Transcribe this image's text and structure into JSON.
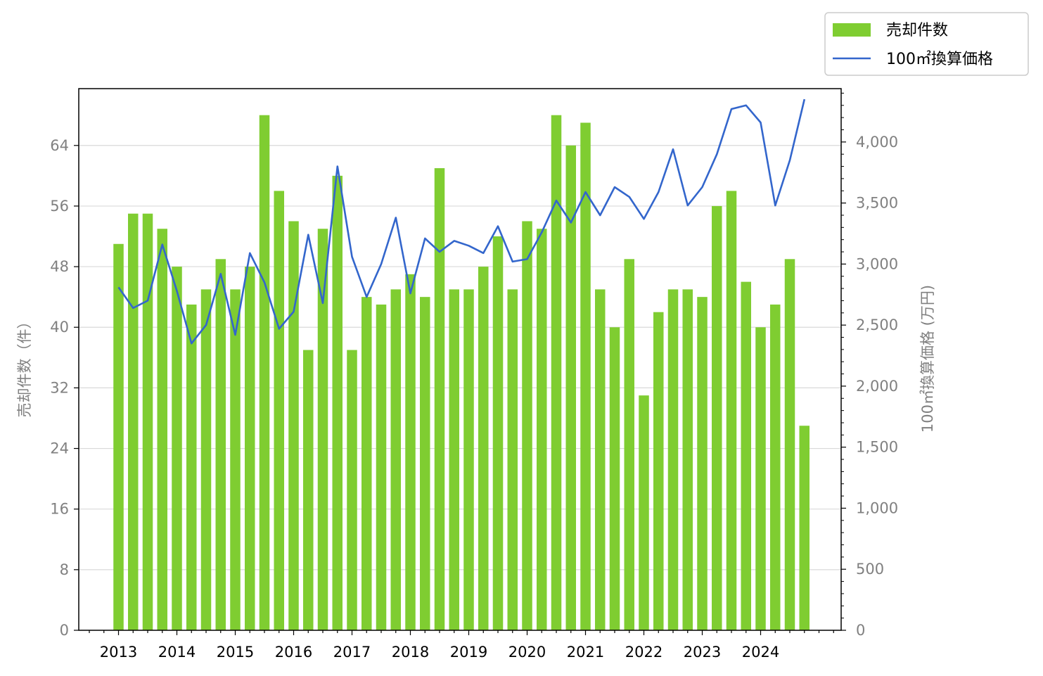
{
  "chart_data": {
    "type": "bar",
    "x_ticks": [
      "2013",
      "2014",
      "2015",
      "2016",
      "2017",
      "2018",
      "2019",
      "2020",
      "2021",
      "2022",
      "2023",
      "2024"
    ],
    "series": [
      {
        "name": "売却件数",
        "kind": "bar",
        "axis": "left",
        "color": "#7fcd31",
        "values": [
          51,
          55,
          55,
          53,
          48,
          43,
          45,
          49,
          45,
          48,
          68,
          58,
          54,
          37,
          53,
          60,
          37,
          44,
          43,
          45,
          47,
          44,
          61,
          45,
          45,
          48,
          52,
          45,
          54,
          53,
          68,
          64,
          67,
          45,
          40,
          49,
          31,
          42,
          45,
          45,
          44,
          56,
          58,
          46,
          40,
          43,
          49,
          27
        ]
      },
      {
        "name": "100㎡換算価格",
        "kind": "line",
        "axis": "right",
        "color": "#3366cc",
        "values": [
          2810,
          2640,
          2700,
          3160,
          2780,
          2350,
          2500,
          2920,
          2420,
          3090,
          2850,
          2470,
          2610,
          3240,
          2680,
          3800,
          3060,
          2730,
          3000,
          3380,
          2760,
          3210,
          3100,
          3190,
          3150,
          3090,
          3310,
          3020,
          3040,
          3260,
          3520,
          3340,
          3590,
          3400,
          3630,
          3550,
          3370,
          3590,
          3940,
          3480,
          3630,
          3900,
          4270,
          4300,
          4160,
          3480,
          3850,
          4350
        ]
      }
    ],
    "y_left": {
      "label": "売却件数（件）",
      "ticks": [
        "0",
        "8",
        "16",
        "24",
        "32",
        "40",
        "48",
        "56",
        "64"
      ],
      "range": [
        0,
        71.5
      ]
    },
    "y_right": {
      "label": "100㎡換算価格 (万円)",
      "ticks": [
        "0",
        "500",
        "1,000",
        "1,500",
        "2,000",
        "2,500",
        "3,000",
        "3,500",
        "4,000"
      ],
      "range": [
        0,
        4437
      ]
    },
    "grid": true,
    "legend": {
      "placement": "top-right",
      "entries": [
        "売却件数",
        "100㎡換算価格"
      ]
    }
  }
}
